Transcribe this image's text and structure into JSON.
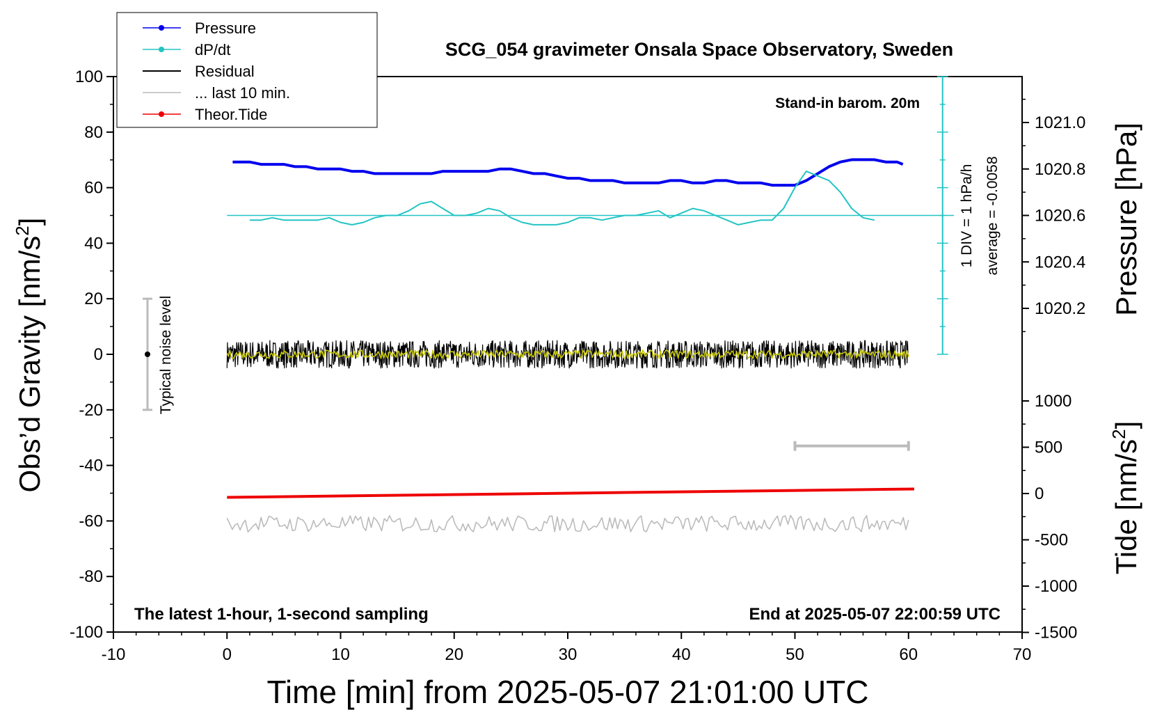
{
  "chart_data": {
    "type": "line",
    "title": "SCG_054 gravimeter Onsala Space Observatory, Sweden",
    "xlabel": "Time [min] from 2025-05-07 21:01:00 UTC",
    "ylabel_left": "Obs’d Gravity [nm/s",
    "ylabel_right_pressure": "Pressure [hPa]",
    "ylabel_right_tide": "Tide [nm/s",
    "superscript": "2",
    "ylabel_tail": "]",
    "xlim": [
      -10,
      70
    ],
    "ylim_left": [
      -100,
      100
    ],
    "ylim_pressure": [
      1020.0,
      1021.2
    ],
    "ylim_tide": [
      -1500,
      1500
    ],
    "x_ticks": [
      "-10",
      "0",
      "10",
      "20",
      "30",
      "40",
      "50",
      "60",
      "70"
    ],
    "y_ticks_left": [
      "100",
      "80",
      "60",
      "40",
      "20",
      "0",
      "-20",
      "-40",
      "-60",
      "-80",
      "-100"
    ],
    "y_ticks_pressure": [
      "1021.0",
      "1020.8",
      "1020.6",
      "1020.4",
      "1020.2"
    ],
    "y_ticks_tide": [
      "1000",
      "500",
      "0",
      "-500",
      "-1000",
      "-1500"
    ],
    "annotations": {
      "barometer": "Stand-in barom. 20m",
      "div": "1 DIV = 1 hPa/h",
      "average": "average = -0.0058",
      "noise": "Typical noise level",
      "footer_left": "The latest 1-hour, 1-second sampling",
      "footer_right": "End at 2025-05-07 22:00:59 UTC"
    },
    "legend": {
      "position": "top-left",
      "entries": [
        {
          "name": "Pressure",
          "color": "#0000ee",
          "marker": true
        },
        {
          "name": "dP/dt",
          "color": "#22c4c4",
          "marker": true
        },
        {
          "name": "Residual",
          "color": "#000000",
          "marker": false
        },
        {
          "name": "... last 10 min.",
          "color": "#bbbbbb",
          "marker": false
        },
        {
          "name": "Theor.Tide",
          "color": "#ee0000",
          "marker": true
        }
      ]
    },
    "series": [
      {
        "name": "Pressure",
        "axis": "pressure",
        "color": "#0000ee",
        "x": [
          0.5,
          2,
          3,
          4,
          5,
          6,
          7,
          8,
          9,
          10,
          11,
          12,
          13,
          14,
          15,
          16,
          17,
          18,
          19,
          20,
          21,
          22,
          23,
          24,
          25,
          26,
          27,
          28,
          29,
          30,
          31,
          32,
          33,
          34,
          35,
          36,
          37,
          38,
          39,
          40,
          41,
          42,
          43,
          44,
          45,
          46,
          47,
          48,
          49,
          50,
          51,
          52,
          53,
          54,
          55,
          56,
          57,
          58,
          59,
          59.5
        ],
        "y": [
          1020.83,
          1020.83,
          1020.82,
          1020.82,
          1020.82,
          1020.81,
          1020.81,
          1020.8,
          1020.8,
          1020.8,
          1020.79,
          1020.79,
          1020.78,
          1020.78,
          1020.78,
          1020.78,
          1020.78,
          1020.78,
          1020.79,
          1020.79,
          1020.79,
          1020.79,
          1020.79,
          1020.8,
          1020.8,
          1020.79,
          1020.78,
          1020.78,
          1020.77,
          1020.76,
          1020.76,
          1020.75,
          1020.75,
          1020.75,
          1020.74,
          1020.74,
          1020.74,
          1020.74,
          1020.75,
          1020.75,
          1020.74,
          1020.74,
          1020.75,
          1020.75,
          1020.74,
          1020.74,
          1020.74,
          1020.73,
          1020.73,
          1020.73,
          1020.75,
          1020.78,
          1020.81,
          1020.83,
          1020.84,
          1020.84,
          1020.84,
          1020.83,
          1020.83,
          1020.82
        ]
      },
      {
        "name": "dP/dt",
        "axis": "pressure",
        "color": "#22c4c4",
        "x": [
          2,
          3,
          4,
          5,
          6,
          7,
          8,
          9,
          10,
          11,
          12,
          13,
          14,
          15,
          16,
          17,
          18,
          19,
          20,
          21,
          22,
          23,
          24,
          25,
          26,
          27,
          28,
          29,
          30,
          31,
          32,
          33,
          34,
          35,
          36,
          37,
          38,
          39,
          40,
          41,
          42,
          43,
          44,
          45,
          46,
          47,
          48,
          49,
          50,
          51,
          52,
          53,
          54,
          55,
          56,
          57
        ],
        "y": [
          1020.58,
          1020.58,
          1020.59,
          1020.58,
          1020.58,
          1020.58,
          1020.58,
          1020.59,
          1020.57,
          1020.56,
          1020.57,
          1020.59,
          1020.6,
          1020.6,
          1020.62,
          1020.65,
          1020.66,
          1020.63,
          1020.6,
          1020.6,
          1020.61,
          1020.63,
          1020.62,
          1020.59,
          1020.57,
          1020.56,
          1020.56,
          1020.56,
          1020.57,
          1020.59,
          1020.59,
          1020.58,
          1020.59,
          1020.6,
          1020.6,
          1020.61,
          1020.62,
          1020.59,
          1020.61,
          1020.63,
          1020.62,
          1020.6,
          1020.58,
          1020.56,
          1020.57,
          1020.58,
          1020.58,
          1020.63,
          1020.72,
          1020.79,
          1020.77,
          1020.75,
          1020.7,
          1020.63,
          1020.59,
          1020.58
        ]
      },
      {
        "name": "Residual",
        "axis": "gravity",
        "color": "#000000",
        "x_range": [
          0,
          60
        ],
        "level": 0,
        "noise_amplitude": 5
      },
      {
        "name": "Residual (smoothed)",
        "axis": "gravity",
        "color": "#c8c800",
        "x_range": [
          0,
          60
        ],
        "level": 0,
        "noise_amplitude": 1.5
      },
      {
        "name": "... last 10 min.",
        "axis": "gravity",
        "color": "#bbbbbb",
        "x_range": [
          0,
          60
        ],
        "level": -61,
        "noise_amplitude": 3
      },
      {
        "name": "Theor.Tide",
        "axis": "gravity",
        "color": "#ee0000",
        "x": [
          0,
          60.5
        ],
        "y": [
          -51.5,
          -48.5
        ]
      }
    ],
    "reference_lines": [
      {
        "axis": "pressure",
        "y": 1020.6,
        "x_range": [
          0,
          64
        ],
        "color": "#22c4c4"
      }
    ],
    "noise_bar": {
      "x": -7,
      "center": 0,
      "range": [
        -20,
        20
      ]
    },
    "window_bar": {
      "x_range": [
        50,
        60
      ],
      "y": -33
    }
  }
}
